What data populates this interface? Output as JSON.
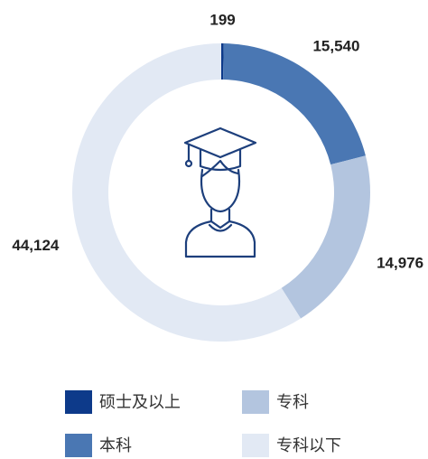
{
  "chart_data": {
    "type": "donut",
    "categories": [
      "硕士及以上",
      "本科",
      "专科",
      "专科以下"
    ],
    "values": [
      199,
      15540,
      14976,
      44124
    ],
    "value_labels": [
      "199",
      "15,540",
      "14,976",
      "44,124"
    ],
    "colors": [
      "#0d3a8a",
      "#4a77b3",
      "#b3c5df",
      "#e2e9f4"
    ],
    "legend": "bottom"
  }
}
